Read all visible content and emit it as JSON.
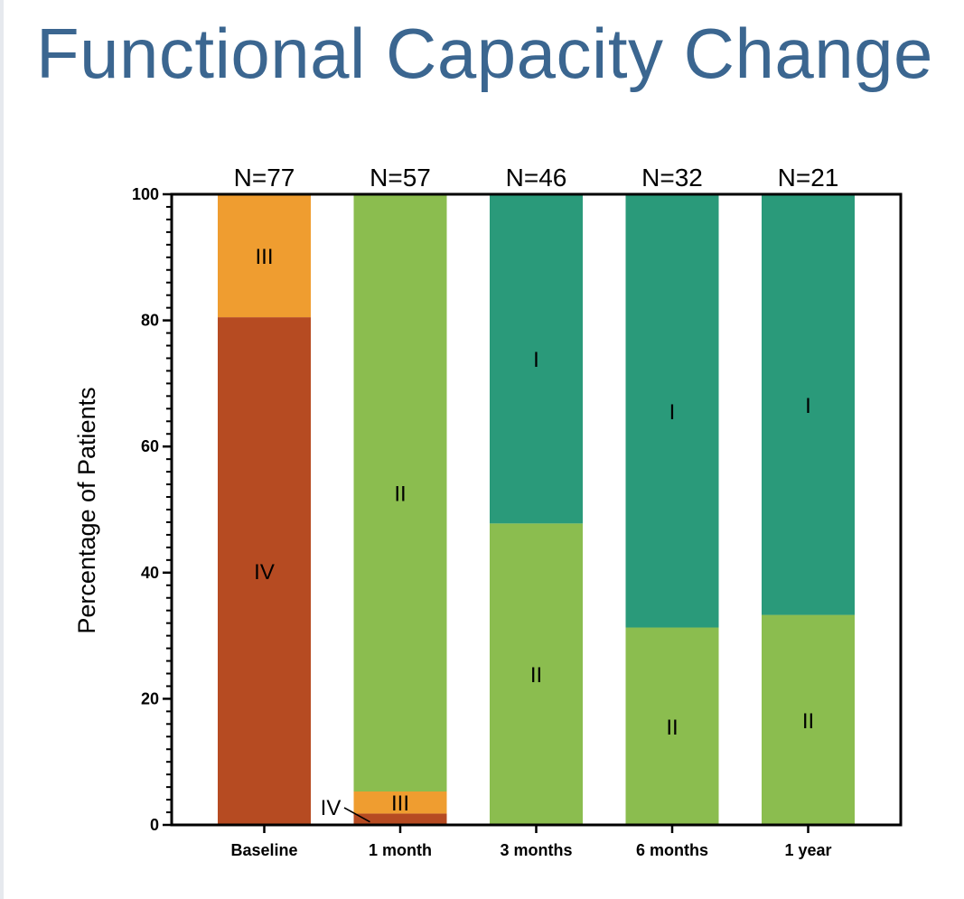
{
  "chart_data": {
    "type": "bar",
    "stacked": true,
    "title": "Functional Capacity Change",
    "ylabel": "Percentage of Patients",
    "xlabel": "",
    "ylim": [
      0,
      100
    ],
    "yticks": [
      0,
      20,
      40,
      60,
      80,
      100
    ],
    "grid": false,
    "categories": [
      "Baseline",
      "1 month",
      "3 months",
      "6 months",
      "1 year"
    ],
    "sample_sizes": [
      "N=77",
      "N=57",
      "N=46",
      "N=32",
      "N=21"
    ],
    "series": [
      {
        "name": "IV",
        "color": "#b64b22",
        "values": [
          80.5,
          1.8,
          0,
          0,
          0
        ]
      },
      {
        "name": "III",
        "color": "#ef9d30",
        "values": [
          19.5,
          3.5,
          0,
          0,
          0
        ]
      },
      {
        "name": "II",
        "color": "#8bbd4f",
        "values": [
          0,
          94.7,
          47.8,
          31.3,
          33.3
        ]
      },
      {
        "name": "I",
        "color": "#2a9a7a",
        "values": [
          0,
          0,
          52.2,
          68.7,
          66.7
        ]
      }
    ],
    "annotations": [
      {
        "category": "1 month",
        "series": "IV",
        "text": "IV",
        "leader_line": true
      }
    ]
  }
}
